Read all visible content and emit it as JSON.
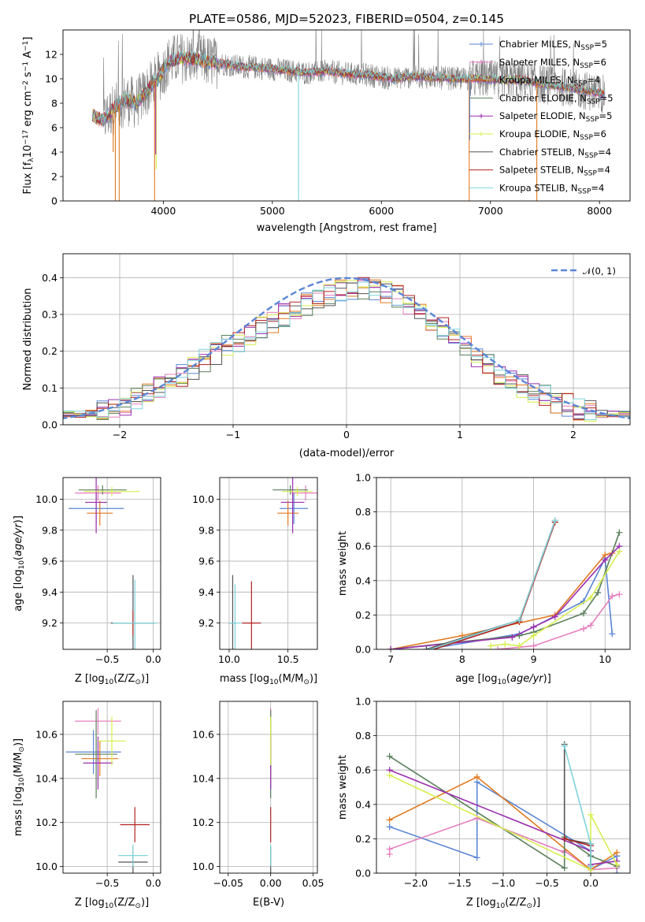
{
  "figure": {
    "title": "PLATE=0586, MJD=52023, FIBERID=0504, z=0.145",
    "series_colors": {
      "Chabrier MILES": "#5b85d6",
      "Salpeter MILES": "#e57fbf",
      "Kroupa MILES": "#e07a20",
      "Chabrier ELODIE": "#5a7f5a",
      "Salpeter ELODIE": "#9b2fae",
      "Kroupa ELODIE": "#d7ee4e",
      "Chabrier STELIB": "#555555",
      "Salpeter STELIB": "#b22222",
      "Kroupa STELIB": "#7fd4dc"
    }
  },
  "chart_data": [
    {
      "id": "spectrum",
      "type": "line",
      "title": "PLATE=0586, MJD=52023, FIBERID=0504, z=0.145",
      "xlabel": "wavelength [Angstrom, rest frame]",
      "ylabel_parts": [
        "Flux [f",
        "λ",
        "10",
        "−17",
        " erg cm",
        "−2",
        " s",
        "−1",
        " A",
        "−1",
        "]"
      ],
      "xlim": [
        3080,
        8280
      ],
      "ylim": [
        0,
        14
      ],
      "xticks": [
        4000,
        5000,
        6000,
        7000,
        8000
      ],
      "yticks": [
        0,
        2,
        4,
        6,
        8,
        10,
        12
      ],
      "grid": false,
      "legend_position": "right",
      "legend": [
        {
          "base": "Chabrier MILES, N",
          "sub": "SSP",
          "tail": "=5",
          "color": "#5b85d6",
          "marker": true
        },
        {
          "base": "Salpeter MILES, N",
          "sub": "SSP",
          "tail": "=6",
          "color": "#e57fbf",
          "marker": true
        },
        {
          "base": "Kroupa MILES, N",
          "sub": "SSP",
          "tail": "=4",
          "color": "#e07a20",
          "marker": false
        },
        {
          "base": "Chabrier ELODIE, N",
          "sub": "SSP",
          "tail": "=5",
          "color": "#5a7f5a",
          "marker": false
        },
        {
          "base": "Salpeter ELODIE, N",
          "sub": "SSP",
          "tail": "=5",
          "color": "#9b2fae",
          "marker": true
        },
        {
          "base": "Kroupa ELODIE, N",
          "sub": "SSP",
          "tail": "=6",
          "color": "#d7ee4e",
          "marker": true
        },
        {
          "base": "Chabrier STELIB, N",
          "sub": "SSP",
          "tail": "=4",
          "color": "#555555",
          "marker": false
        },
        {
          "base": "Salpeter STELIB, N",
          "sub": "SSP",
          "tail": "=4",
          "color": "#b22222",
          "marker": false
        },
        {
          "base": "Kroupa STELIB, N",
          "sub": "SSP",
          "tail": "=4",
          "color": "#7fd4dc",
          "marker": false
        }
      ],
      "data_series": {
        "name": "",
        "color": "#808080",
        "x_range": [
          3450,
          8050
        ],
        "approx_level": 9.5,
        "noise_amplitude": 1.8
      },
      "model_continuum": {
        "x": [
          3350,
          3450,
          3550,
          3650,
          3750,
          3850,
          3950,
          4050,
          4150,
          4300,
          4500,
          4700,
          4900,
          5100,
          5300,
          5500,
          5700,
          5900,
          6100,
          6300,
          6500,
          6700,
          6900,
          7100,
          7300,
          7500,
          7700,
          7900,
          8050
        ],
        "y": [
          7.0,
          6.6,
          7.6,
          8.3,
          8.0,
          9.0,
          10.0,
          11.4,
          11.7,
          11.6,
          11.3,
          11.0,
          10.9,
          10.7,
          10.5,
          10.6,
          10.4,
          10.3,
          10.0,
          10.2,
          10.1,
          10.0,
          10.0,
          9.9,
          9.9,
          9.5,
          9.3,
          9.0,
          8.7
        ]
      },
      "model_dips": [
        {
          "x": 3560,
          "ymin": 0.0,
          "color": "#e07a20"
        },
        {
          "x": 3540,
          "ymin": 4.0,
          "color": "#e07a20"
        },
        {
          "x": 3595,
          "ymin": 0.0,
          "color": "#e07a20"
        },
        {
          "x": 3920,
          "ymin": 0.0,
          "color": "#e07a20"
        },
        {
          "x": 3935,
          "ymin": 2.6,
          "color": "#d7ee4e"
        },
        {
          "x": 3930,
          "ymin": 3.8,
          "color": "#9b2fae"
        },
        {
          "x": 5240,
          "ymin": 0.0,
          "color": "#7fd4dc"
        },
        {
          "x": 6805,
          "ymin": 0.0,
          "color": "#e07a20"
        },
        {
          "x": 6810,
          "ymin": 5.0,
          "color": "#5b85d6"
        },
        {
          "x": 7425,
          "ymin": 0.0,
          "color": "#e07a20"
        }
      ]
    },
    {
      "id": "residual-histogram",
      "type": "bar",
      "xlabel": "(data-model)/error",
      "ylabel": "Normed distribution",
      "xlim": [
        -2.5,
        2.5
      ],
      "ylim": [
        0,
        0.465
      ],
      "xticks": [
        -2,
        -1,
        0,
        1,
        2
      ],
      "yticks": [
        0.0,
        0.1,
        0.2,
        0.3,
        0.4
      ],
      "grid": true,
      "legend_position": "top-right",
      "bin_width": 0.1,
      "reference_curve": {
        "label": "𝒩(0, 1)",
        "color": "#5b85d6",
        "mean": 0,
        "sigma": 1
      },
      "histogram_variance": 0.032
    },
    {
      "id": "age-vs-metallicity",
      "type": "scatter",
      "xlabel_parts": [
        "Z [log",
        "10",
        "(Z/Z",
        "⊙",
        ")]"
      ],
      "ylabel_parts": [
        "age  [log",
        "10",
        "(",
        "age/yr",
        ")]"
      ],
      "xlim": [
        -0.98,
        0.08
      ],
      "ylim": [
        9.03,
        10.14
      ],
      "xticks": [
        -0.5,
        0.0
      ],
      "xtick_labels": [
        "−0.5",
        "0.0"
      ],
      "yticks": [
        9.2,
        9.4,
        9.6,
        9.8,
        10.0
      ],
      "grid": true,
      "points": [
        {
          "series": "Chabrier MILES",
          "x": -0.62,
          "y": 9.94,
          "xerr": 0.3,
          "yerr": 0.1
        },
        {
          "series": "Salpeter MILES",
          "x": -0.6,
          "y": 10.04,
          "xerr": 0.25,
          "yerr": 0.05
        },
        {
          "series": "Kroupa MILES",
          "x": -0.58,
          "y": 9.91,
          "xerr": 0.14,
          "yerr": 0.08
        },
        {
          "series": "Chabrier ELODIE",
          "x": -0.55,
          "y": 10.06,
          "xerr": 0.26,
          "yerr": 0.03
        },
        {
          "series": "Salpeter ELODIE",
          "x": -0.62,
          "y": 9.98,
          "xerr": 0.12,
          "yerr": 0.2
        },
        {
          "series": "Kroupa ELODIE",
          "x": -0.45,
          "y": 10.05,
          "xerr": 0.3,
          "yerr": 0.03
        },
        {
          "series": "Chabrier STELIB",
          "x": -0.22,
          "y": 9.2,
          "xerr": 0.24,
          "yerr": 0.31
        },
        {
          "series": "Salpeter STELIB",
          "x": -0.22,
          "y": 9.2,
          "xerr": 0.04,
          "yerr": 0.08
        },
        {
          "series": "Kroupa STELIB",
          "x": -0.2,
          "y": 9.2,
          "xerr": 0.24,
          "yerr": 0.28
        }
      ]
    },
    {
      "id": "age-vs-mass",
      "type": "scatter",
      "xlabel_parts": [
        "mass [log",
        "10",
        "(M/M",
        "⊙",
        ")]"
      ],
      "ylabel_parts": [],
      "xlim": [
        9.92,
        10.75
      ],
      "ylim": [
        9.03,
        10.14
      ],
      "xticks": [
        10.0,
        10.5
      ],
      "xtick_labels": [
        "10.0",
        "10.5"
      ],
      "yticks": [
        9.2,
        9.4,
        9.6,
        9.8,
        10.0
      ],
      "grid": true,
      "points": [
        {
          "series": "Chabrier MILES",
          "x": 10.55,
          "y": 9.94,
          "xerr": 0.12,
          "yerr": 0.1
        },
        {
          "series": "Salpeter MILES",
          "x": 10.65,
          "y": 10.04,
          "xerr": 0.12,
          "yerr": 0.05
        },
        {
          "series": "Kroupa MILES",
          "x": 10.5,
          "y": 9.91,
          "xerr": 0.09,
          "yerr": 0.08
        },
        {
          "series": "Chabrier ELODIE",
          "x": 10.52,
          "y": 10.06,
          "xerr": 0.15,
          "yerr": 0.03
        },
        {
          "series": "Salpeter ELODIE",
          "x": 10.54,
          "y": 9.98,
          "xerr": 0.1,
          "yerr": 0.2
        },
        {
          "series": "Kroupa ELODIE",
          "x": 10.58,
          "y": 10.05,
          "xerr": 0.13,
          "yerr": 0.03
        },
        {
          "series": "Chabrier STELIB",
          "x": 10.03,
          "y": 9.2,
          "xerr": 0.03,
          "yerr": 0.31
        },
        {
          "series": "Salpeter STELIB",
          "x": 10.19,
          "y": 9.2,
          "xerr": 0.08,
          "yerr": 0.27
        },
        {
          "series": "Kroupa STELIB",
          "x": 10.05,
          "y": 9.2,
          "xerr": 0.05,
          "yerr": 0.25
        }
      ]
    },
    {
      "id": "mass-weight-vs-age",
      "type": "line",
      "xlabel_parts": [
        "age  [log",
        "10",
        "(",
        "age/yr",
        ")]"
      ],
      "ylabel": "mass weight",
      "xlim": [
        6.8,
        10.35
      ],
      "ylim": [
        0.0,
        1.0
      ],
      "xticks": [
        7,
        8,
        9,
        10
      ],
      "xtick_labels": [
        "7",
        "8",
        "9",
        "10"
      ],
      "yticks": [
        0.0,
        0.2,
        0.4,
        0.6,
        0.8,
        1.0
      ],
      "ytick_labels": [
        "0.0",
        "0.2",
        "0.4",
        "0.6",
        "0.8",
        "1.0"
      ],
      "grid": true,
      "series": [
        {
          "name": "Chabrier MILES",
          "x": [
            7.5,
            8.8,
            9.0,
            9.7,
            10.0,
            10.1
          ],
          "y": [
            0.0,
            0.09,
            0.13,
            0.28,
            0.53,
            0.09
          ]
        },
        {
          "name": "Salpeter MILES",
          "x": [
            8.5,
            9.0,
            9.7,
            9.8,
            10.1,
            10.2
          ],
          "y": [
            0.0,
            0.02,
            0.12,
            0.14,
            0.31,
            0.32
          ]
        },
        {
          "name": "Kroupa MILES",
          "x": [
            7.0,
            8.0,
            9.3,
            10.0,
            10.1
          ],
          "y": [
            0.0,
            0.08,
            0.2,
            0.55,
            0.56
          ]
        },
        {
          "name": "Chabrier ELODIE",
          "x": [
            7.0,
            8.8,
            9.0,
            9.7,
            9.9,
            10.2
          ],
          "y": [
            0.0,
            0.08,
            0.1,
            0.21,
            0.33,
            0.68
          ]
        },
        {
          "name": "Salpeter ELODIE",
          "x": [
            7.0,
            8.7,
            9.0,
            9.3,
            10.0,
            10.2
          ],
          "y": [
            0.0,
            0.07,
            0.13,
            0.19,
            0.52,
            0.6
          ]
        },
        {
          "name": "Kroupa ELODIE",
          "x": [
            8.4,
            8.6,
            8.8,
            9.0,
            9.8,
            10.2
          ],
          "y": [
            0.02,
            0.03,
            0.02,
            0.08,
            0.3,
            0.57
          ]
        },
        {
          "name": "Chabrier STELIB",
          "x": [
            7.5,
            8.8,
            9.3
          ],
          "y": [
            0.0,
            0.17,
            0.75
          ]
        },
        {
          "name": "Salpeter STELIB",
          "x": [
            7.6,
            8.8,
            9.3
          ],
          "y": [
            0.0,
            0.16,
            0.74
          ]
        },
        {
          "name": "Kroupa STELIB",
          "x": [
            7.55,
            8.8,
            9.3
          ],
          "y": [
            0.0,
            0.17,
            0.75
          ]
        }
      ]
    },
    {
      "id": "mass-vs-metallicity",
      "type": "scatter",
      "xlabel_parts": [
        "Z [log",
        "10",
        "(Z/Z",
        "⊙",
        ")]"
      ],
      "ylabel_parts": [
        "mass [log",
        "10",
        "(M/M",
        "⊙",
        ")]"
      ],
      "xlim": [
        -0.98,
        0.08
      ],
      "ylim": [
        9.97,
        10.75
      ],
      "xticks": [
        -0.5,
        0.0
      ],
      "xtick_labels": [
        "−0.5",
        "0.0"
      ],
      "yticks": [
        10.0,
        10.2,
        10.4,
        10.6
      ],
      "grid": true,
      "points": [
        {
          "series": "Chabrier MILES",
          "x": -0.65,
          "y": 10.52,
          "xerr": 0.3,
          "yerr": 0.1
        },
        {
          "series": "Salpeter MILES",
          "x": -0.6,
          "y": 10.66,
          "xerr": 0.25,
          "yerr": 0.06
        },
        {
          "series": "Kroupa MILES",
          "x": -0.58,
          "y": 10.49,
          "xerr": 0.2,
          "yerr": 0.08
        },
        {
          "series": "Chabrier ELODIE",
          "x": -0.62,
          "y": 10.51,
          "xerr": 0.23,
          "yerr": 0.2
        },
        {
          "series": "Salpeter ELODIE",
          "x": -0.6,
          "y": 10.47,
          "xerr": 0.16,
          "yerr": 0.12
        },
        {
          "series": "Kroupa ELODIE",
          "x": -0.45,
          "y": 10.57,
          "xerr": 0.15,
          "yerr": 0.11
        },
        {
          "series": "Chabrier STELIB",
          "x": -0.22,
          "y": 10.02,
          "xerr": 0.16,
          "yerr": 0.07
        },
        {
          "series": "Salpeter STELIB",
          "x": -0.2,
          "y": 10.19,
          "xerr": 0.16,
          "yerr": 0.08
        },
        {
          "series": "Kroupa STELIB",
          "x": -0.22,
          "y": 10.05,
          "xerr": 0.16,
          "yerr": 0.05
        }
      ]
    },
    {
      "id": "mass-vs-extinction",
      "type": "scatter",
      "xlabel": "E(B-V)",
      "ylabel_parts": [],
      "xlim": [
        -0.06,
        0.055
      ],
      "ylim": [
        9.97,
        10.75
      ],
      "xticks": [
        -0.05,
        0.0,
        0.05
      ],
      "xtick_labels": [
        "−0.05",
        "0.00",
        "0.05"
      ],
      "yticks": [
        10.0,
        10.2,
        10.4,
        10.6
      ],
      "grid": true,
      "points": [
        {
          "series": "Chabrier MILES",
          "x": 0.0,
          "y": 10.52,
          "xerr": 0.0,
          "yerr": 0.1
        },
        {
          "series": "Salpeter MILES",
          "x": 0.0,
          "y": 10.66,
          "xerr": 0.0,
          "yerr": 0.06
        },
        {
          "series": "Kroupa MILES",
          "x": 0.0,
          "y": 10.49,
          "xerr": 0.0,
          "yerr": 0.08
        },
        {
          "series": "Chabrier ELODIE",
          "x": 0.0,
          "y": 10.51,
          "xerr": 0.0,
          "yerr": 0.2
        },
        {
          "series": "Salpeter ELODIE",
          "x": 0.0,
          "y": 10.47,
          "xerr": 0.0,
          "yerr": 0.12
        },
        {
          "series": "Kroupa ELODIE",
          "x": 0.0,
          "y": 10.57,
          "xerr": 0.0,
          "yerr": 0.11
        },
        {
          "series": "Chabrier STELIB",
          "x": 0.0,
          "y": 10.02,
          "xerr": 0.0,
          "yerr": 0.07
        },
        {
          "series": "Salpeter STELIB",
          "x": 0.0,
          "y": 10.19,
          "xerr": 0.0,
          "yerr": 0.08
        },
        {
          "series": "Kroupa STELIB",
          "x": 0.0,
          "y": 10.05,
          "xerr": 0.0,
          "yerr": 0.05
        }
      ]
    },
    {
      "id": "mass-weight-vs-metallicity",
      "type": "line",
      "xlabel_parts": [
        "Z [log",
        "10",
        "(Z/Z",
        "⊙",
        ")]"
      ],
      "ylabel": "mass weight",
      "xlim": [
        -2.45,
        0.45
      ],
      "ylim": [
        0.0,
        1.0
      ],
      "xticks": [
        -2.0,
        -1.5,
        -1.0,
        -0.5,
        0.0
      ],
      "xtick_labels": [
        "−2.0",
        "−1.5",
        "−1.0",
        "−0.5",
        "0.0"
      ],
      "yticks": [
        0.0,
        0.2,
        0.4,
        0.6,
        0.8,
        1.0
      ],
      "ytick_labels": [
        "0.0",
        "0.2",
        "0.4",
        "0.6",
        "0.8",
        "1.0"
      ],
      "grid": true,
      "series": [
        {
          "name": "Chabrier MILES",
          "x": [
            -2.3,
            -1.3,
            -1.3,
            0.0,
            0.0,
            0.3,
            0.3
          ],
          "y": [
            0.27,
            0.09,
            0.53,
            0.13,
            0.02,
            0.1,
            0.0
          ]
        },
        {
          "name": "Salpeter MILES",
          "x": [
            -2.3,
            -2.3,
            -1.3,
            -0.3,
            -0.3,
            0.0,
            0.3
          ],
          "y": [
            0.11,
            0.14,
            0.32,
            0.12,
            0.13,
            0.02,
            0.03
          ]
        },
        {
          "name": "Kroupa MILES",
          "x": [
            -2.3,
            -1.3,
            0.0,
            0.3
          ],
          "y": [
            0.31,
            0.56,
            0.02,
            0.12
          ]
        },
        {
          "name": "Chabrier ELODIE",
          "x": [
            -2.3,
            -0.3,
            -0.3,
            0.0,
            0.3
          ],
          "y": [
            0.68,
            0.03,
            0.21,
            0.1,
            0.04
          ]
        },
        {
          "name": "Salpeter ELODIE",
          "x": [
            -2.3,
            0.0,
            0.0,
            0.3
          ],
          "y": [
            0.6,
            0.13,
            0.05,
            0.07
          ]
        },
        {
          "name": "Kroupa ELODIE",
          "x": [
            -2.3,
            0.0,
            0.0,
            0.3
          ],
          "y": [
            0.57,
            0.02,
            0.34,
            0.05
          ]
        },
        {
          "name": "Chabrier STELIB",
          "x": [
            -0.3,
            -0.3,
            0.0,
            0.0
          ],
          "y": [
            0.75,
            0.2,
            0.17,
            0.04
          ]
        },
        {
          "name": "Salpeter STELIB",
          "x": [
            -0.3,
            0.0
          ],
          "y": [
            0.2,
            0.16
          ]
        },
        {
          "name": "Kroupa STELIB",
          "x": [
            -0.3,
            0.0,
            0.0
          ],
          "y": [
            0.74,
            0.17,
            0.04
          ]
        }
      ]
    }
  ]
}
